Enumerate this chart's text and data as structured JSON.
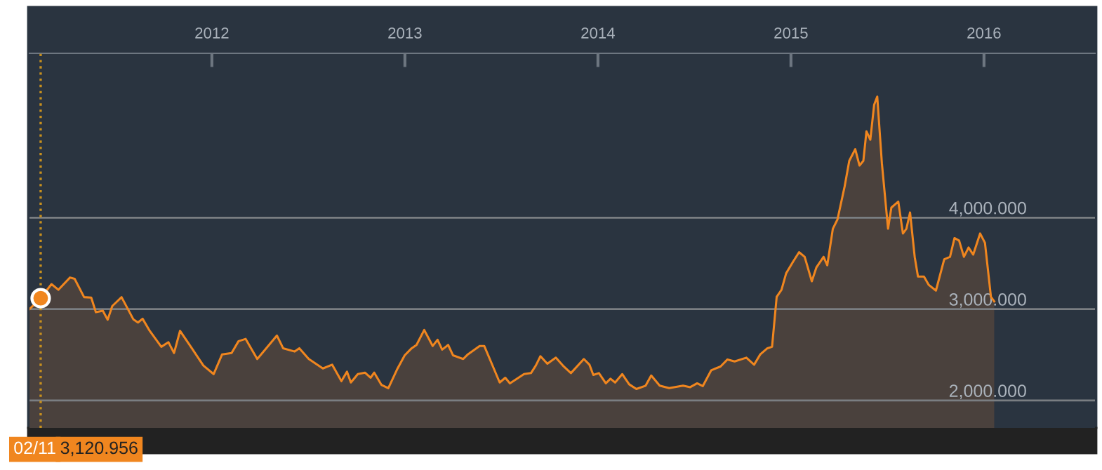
{
  "chart_data": {
    "type": "area",
    "x": [
      2011.055,
      2011.113,
      2011.169,
      2011.205,
      2011.265,
      2011.289,
      2011.338,
      2011.375,
      2011.399,
      2011.435,
      2011.46,
      2011.484,
      2011.532,
      2011.593,
      2011.617,
      2011.641,
      2011.678,
      2011.738,
      2011.775,
      2011.804,
      2011.835,
      2011.896,
      2011.956,
      2012.009,
      2012.053,
      2012.102,
      2012.138,
      2012.175,
      2012.235,
      2012.296,
      2012.337,
      2012.369,
      2012.429,
      2012.453,
      2012.502,
      2012.575,
      2012.623,
      2012.671,
      2012.7,
      2012.72,
      2012.756,
      2012.793,
      2012.822,
      2012.841,
      2012.878,
      2012.914,
      2012.962,
      2012.999,
      2013.035,
      2013.06,
      2013.1,
      2013.144,
      2013.169,
      2013.193,
      2013.224,
      2013.249,
      2013.302,
      2013.326,
      2013.387,
      2013.411,
      2013.447,
      2013.491,
      2013.52,
      2013.544,
      2013.617,
      2013.653,
      2013.678,
      2013.702,
      2013.738,
      2013.782,
      2013.823,
      2013.86,
      2013.927,
      2013.956,
      2013.976,
      2014.005,
      2014.041,
      2014.065,
      2014.089,
      2014.126,
      2014.162,
      2014.199,
      2014.247,
      2014.276,
      2014.32,
      2014.369,
      2014.441,
      2014.478,
      2014.514,
      2014.543,
      2014.587,
      2014.635,
      2014.671,
      2014.708,
      2014.769,
      2014.809,
      2014.841,
      2014.878,
      2014.902,
      2014.926,
      2014.951,
      2014.975,
      2015.011,
      2015.042,
      2015.071,
      2015.108,
      2015.132,
      2015.169,
      2015.188,
      2015.217,
      2015.241,
      2015.278,
      2015.302,
      2015.333,
      2015.355,
      2015.375,
      2015.391,
      2015.411,
      2015.431,
      2015.447,
      2015.471,
      2015.503,
      2015.52,
      2015.556,
      2015.58,
      2015.598,
      2015.617,
      2015.641,
      2015.658,
      2015.689,
      2015.714,
      2015.751,
      2015.794,
      2015.824,
      2015.847,
      2015.871,
      2015.896,
      2015.92,
      2015.944,
      2015.98,
      2016.005,
      2016.036,
      2016.053
    ],
    "series": [
      {
        "color": "#f0861f",
        "values": [
          3000,
          3120,
          3274,
          3212,
          3346,
          3331,
          3131,
          3126,
          2966,
          2982,
          2885,
          3034,
          3131,
          2889,
          2854,
          2895,
          2762,
          2588,
          2638,
          2520,
          2762,
          2572,
          2382,
          2289,
          2505,
          2520,
          2649,
          2674,
          2454,
          2608,
          2711,
          2572,
          2536,
          2572,
          2454,
          2351,
          2392,
          2212,
          2315,
          2197,
          2289,
          2305,
          2249,
          2305,
          2172,
          2135,
          2351,
          2495,
          2572,
          2608,
          2772,
          2597,
          2665,
          2557,
          2608,
          2495,
          2454,
          2505,
          2597,
          2597,
          2418,
          2197,
          2249,
          2188,
          2289,
          2300,
          2382,
          2485,
          2403,
          2469,
          2372,
          2300,
          2454,
          2392,
          2280,
          2300,
          2188,
          2238,
          2197,
          2289,
          2177,
          2126,
          2162,
          2274,
          2162,
          2135,
          2162,
          2146,
          2188,
          2157,
          2331,
          2372,
          2449,
          2428,
          2469,
          2392,
          2505,
          2572,
          2588,
          3135,
          3212,
          3392,
          3520,
          3623,
          3572,
          3305,
          3458,
          3572,
          3480,
          3880,
          3982,
          4342,
          4623,
          4751,
          4572,
          4623,
          4946,
          4854,
          5238,
          5326,
          4597,
          3880,
          4111,
          4177,
          3828,
          3880,
          4058,
          3572,
          3357,
          3357,
          3265,
          3203,
          3546,
          3572,
          3777,
          3751,
          3572,
          3674,
          3597,
          3828,
          3726,
          3135,
          3085
        ]
      }
    ],
    "xlim": [
      2011.055,
      2016.575
    ],
    "xticks": [
      2012,
      2013,
      2014,
      2015,
      2016
    ],
    "ylim": [
      1700,
      5800
    ],
    "yticks": [
      {
        "value": 2000,
        "label": "2,000.000"
      },
      {
        "value": 3000,
        "label": "3,000.000"
      },
      {
        "value": 4000,
        "label": "4,000.000"
      }
    ],
    "grid": "y",
    "ref_lines": [
      {
        "axis": "x",
        "value": 2011.113,
        "color": "#c8901e",
        "line_style": "dotted"
      }
    ],
    "annotations": [
      "02/11",
      "3,120.956"
    ]
  }
}
